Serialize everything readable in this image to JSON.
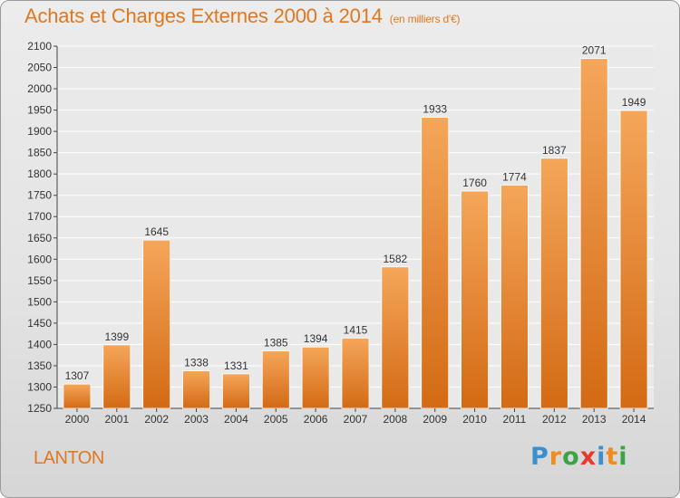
{
  "chart_data": {
    "type": "bar",
    "title": "Achats et Charges Externes 2000 à 2014",
    "subtitle": "(en milliers d'€)",
    "categories": [
      "2000",
      "2001",
      "2002",
      "2003",
      "2004",
      "2005",
      "2006",
      "2007",
      "2008",
      "2009",
      "2010",
      "2011",
      "2012",
      "2013",
      "2014"
    ],
    "values": [
      1307,
      1399,
      1645,
      1338,
      1331,
      1385,
      1394,
      1415,
      1582,
      1933,
      1760,
      1774,
      1837,
      2071,
      1949
    ],
    "ylim": [
      1250,
      2100
    ],
    "yticks": [
      1250,
      1300,
      1350,
      1400,
      1450,
      1500,
      1550,
      1600,
      1650,
      1700,
      1750,
      1800,
      1850,
      1900,
      1950,
      2000,
      2050,
      2100
    ],
    "grid": true,
    "bar_color_top": "#f5a65a",
    "bar_color_bottom": "#d36a14"
  },
  "footer": {
    "place": "LANTON",
    "logo_letters": [
      "P",
      "r",
      "o",
      "x",
      "i",
      "t",
      "i"
    ],
    "logo_colors": [
      "#3a8fd0",
      "#f08c1c",
      "#3aa548",
      "#e83a2a",
      "#3a8fd0",
      "#f08c1c",
      "#3aa548"
    ]
  }
}
